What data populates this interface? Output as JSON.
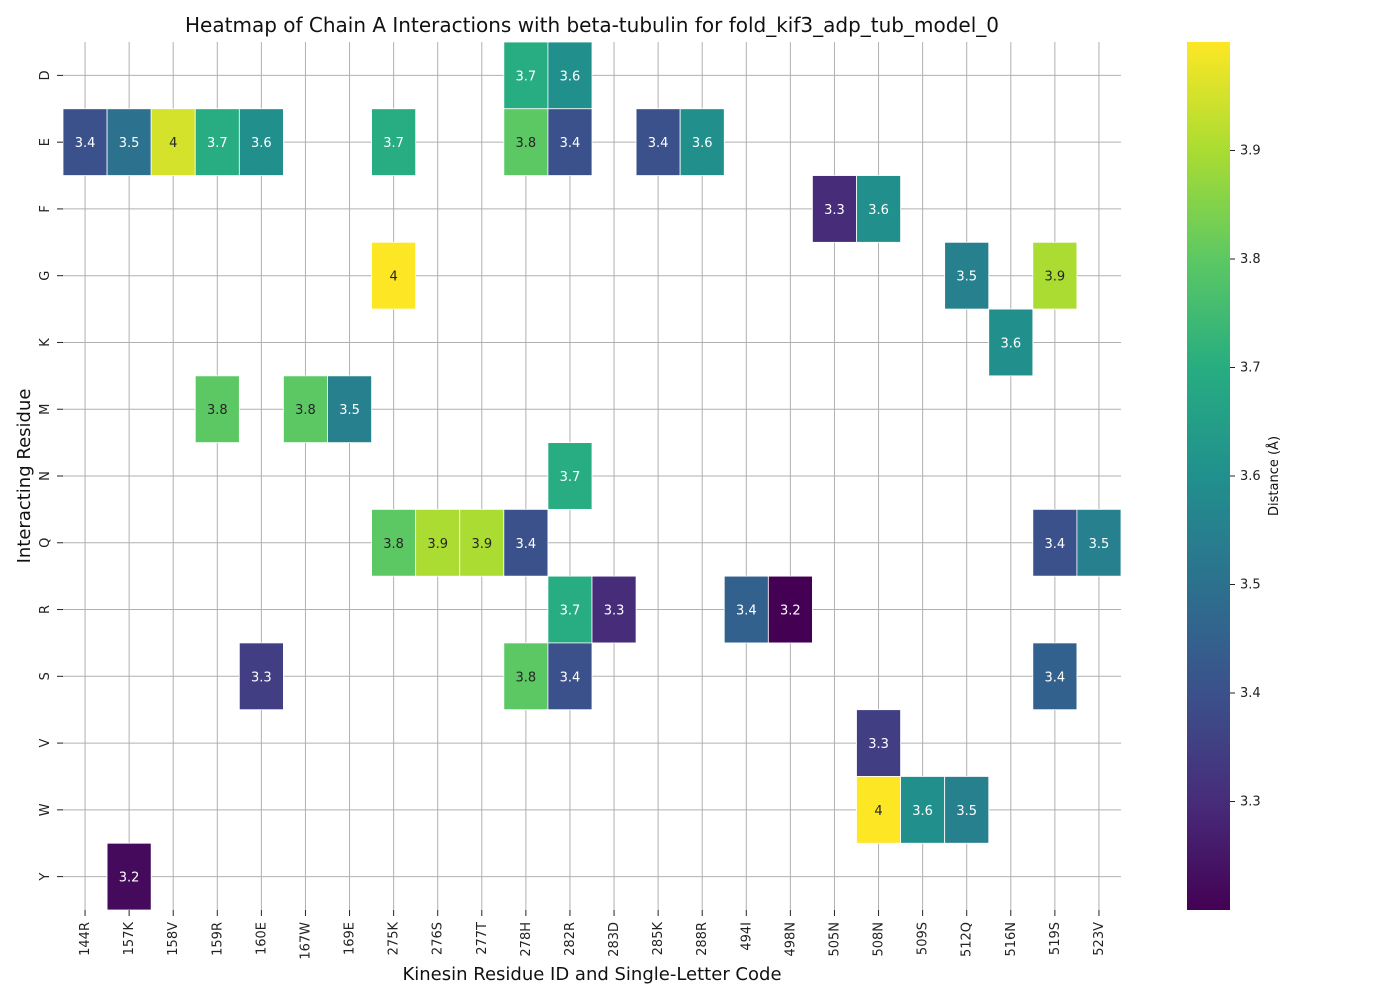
{
  "chart_data": {
    "type": "heatmap",
    "title": "Heatmap of Chain A Interactions with beta-tubulin for fold_kif3_adp_tub_model_0",
    "xlabel": "Kinesin Residue ID and Single-Letter Code",
    "ylabel": "Interacting Residue",
    "colorbar_label": "Distance (Å)",
    "colormap": "viridis",
    "value_range": [
      3.2,
      4.0
    ],
    "colorbar_ticks": [
      "3.3",
      "3.4",
      "3.5",
      "3.6",
      "3.7",
      "3.8",
      "3.9"
    ],
    "x_categories": [
      "144R",
      "157K",
      "158V",
      "159R",
      "160E",
      "167W",
      "169E",
      "275K",
      "276S",
      "277T",
      "278H",
      "282R",
      "283D",
      "285K",
      "288R",
      "494I",
      "498N",
      "505N",
      "508N",
      "509S",
      "512Q",
      "516N",
      "519S",
      "523V"
    ],
    "y_categories": [
      "D",
      "E",
      "F",
      "G",
      "K",
      "M",
      "N",
      "Q",
      "R",
      "S",
      "V",
      "W",
      "Y"
    ],
    "cells": [
      {
        "x": "278H",
        "y": "D",
        "value": 3.7,
        "label": "3.7"
      },
      {
        "x": "282R",
        "y": "D",
        "value": 3.6,
        "label": "3.6"
      },
      {
        "x": "144R",
        "y": "E",
        "value": 3.4,
        "label": "3.4"
      },
      {
        "x": "157K",
        "y": "E",
        "value": 3.5,
        "label": "3.5"
      },
      {
        "x": "158V",
        "y": "E",
        "value": 3.95,
        "label": "4"
      },
      {
        "x": "159R",
        "y": "E",
        "value": 3.7,
        "label": "3.7"
      },
      {
        "x": "160E",
        "y": "E",
        "value": 3.6,
        "label": "3.6"
      },
      {
        "x": "275K",
        "y": "E",
        "value": 3.7,
        "label": "3.7"
      },
      {
        "x": "278H",
        "y": "E",
        "value": 3.8,
        "label": "3.8"
      },
      {
        "x": "282R",
        "y": "E",
        "value": 3.4,
        "label": "3.4"
      },
      {
        "x": "285K",
        "y": "E",
        "value": 3.4,
        "label": "3.4"
      },
      {
        "x": "288R",
        "y": "E",
        "value": 3.6,
        "label": "3.6"
      },
      {
        "x": "505N",
        "y": "F",
        "value": 3.3,
        "label": "3.3"
      },
      {
        "x": "508N",
        "y": "F",
        "value": 3.6,
        "label": "3.6"
      },
      {
        "x": "275K",
        "y": "G",
        "value": 4.0,
        "label": "4"
      },
      {
        "x": "512Q",
        "y": "G",
        "value": 3.55,
        "label": "3.5"
      },
      {
        "x": "519S",
        "y": "G",
        "value": 3.9,
        "label": "3.9"
      },
      {
        "x": "516N",
        "y": "K",
        "value": 3.6,
        "label": "3.6"
      },
      {
        "x": "159R",
        "y": "M",
        "value": 3.8,
        "label": "3.8"
      },
      {
        "x": "167W",
        "y": "M",
        "value": 3.8,
        "label": "3.8"
      },
      {
        "x": "169E",
        "y": "M",
        "value": 3.55,
        "label": "3.5"
      },
      {
        "x": "282R",
        "y": "N",
        "value": 3.7,
        "label": "3.7"
      },
      {
        "x": "275K",
        "y": "Q",
        "value": 3.8,
        "label": "3.8"
      },
      {
        "x": "276S",
        "y": "Q",
        "value": 3.9,
        "label": "3.9"
      },
      {
        "x": "277T",
        "y": "Q",
        "value": 3.9,
        "label": "3.9"
      },
      {
        "x": "278H",
        "y": "Q",
        "value": 3.4,
        "label": "3.4"
      },
      {
        "x": "519S",
        "y": "Q",
        "value": 3.4,
        "label": "3.4"
      },
      {
        "x": "523V",
        "y": "Q",
        "value": 3.55,
        "label": "3.5"
      },
      {
        "x": "282R",
        "y": "R",
        "value": 3.7,
        "label": "3.7"
      },
      {
        "x": "283D",
        "y": "R",
        "value": 3.3,
        "label": "3.3"
      },
      {
        "x": "494I",
        "y": "R",
        "value": 3.45,
        "label": "3.4"
      },
      {
        "x": "498N",
        "y": "R",
        "value": 3.2,
        "label": "3.2"
      },
      {
        "x": "160E",
        "y": "S",
        "value": 3.35,
        "label": "3.3"
      },
      {
        "x": "278H",
        "y": "S",
        "value": 3.8,
        "label": "3.8"
      },
      {
        "x": "282R",
        "y": "S",
        "value": 3.4,
        "label": "3.4"
      },
      {
        "x": "519S",
        "y": "S",
        "value": 3.45,
        "label": "3.4"
      },
      {
        "x": "508N",
        "y": "V",
        "value": 3.35,
        "label": "3.3"
      },
      {
        "x": "508N",
        "y": "W",
        "value": 4.0,
        "label": "4"
      },
      {
        "x": "509S",
        "y": "W",
        "value": 3.6,
        "label": "3.6"
      },
      {
        "x": "512Q",
        "y": "W",
        "value": 3.55,
        "label": "3.5"
      },
      {
        "x": "157K",
        "y": "Y",
        "value": 3.22,
        "label": "3.2"
      }
    ],
    "grid": true,
    "colorbar_position": "right"
  }
}
